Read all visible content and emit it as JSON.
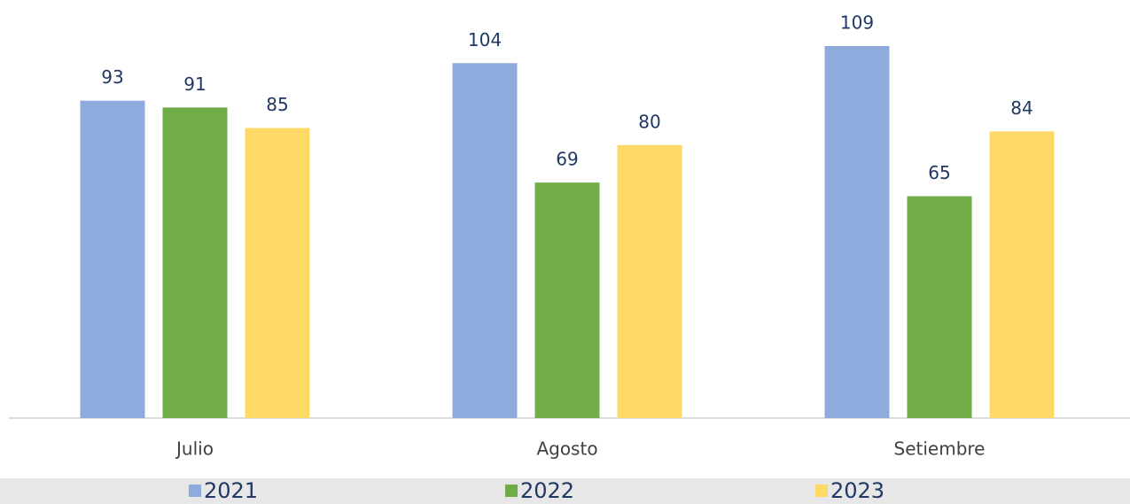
{
  "chart_data": {
    "type": "bar",
    "categories": [
      "Julio",
      "Agosto",
      "Setiembre"
    ],
    "series": [
      {
        "name": "2021",
        "color": "#8faadc",
        "values": [
          93,
          104,
          109
        ]
      },
      {
        "name": "2022",
        "color": "#70ad47",
        "values": [
          91,
          69,
          65
        ]
      },
      {
        "name": "2023",
        "color": "#ffd966",
        "values": [
          85,
          80,
          84
        ]
      }
    ],
    "ylim": [
      0,
      122.5
    ],
    "legend": "bottom"
  }
}
